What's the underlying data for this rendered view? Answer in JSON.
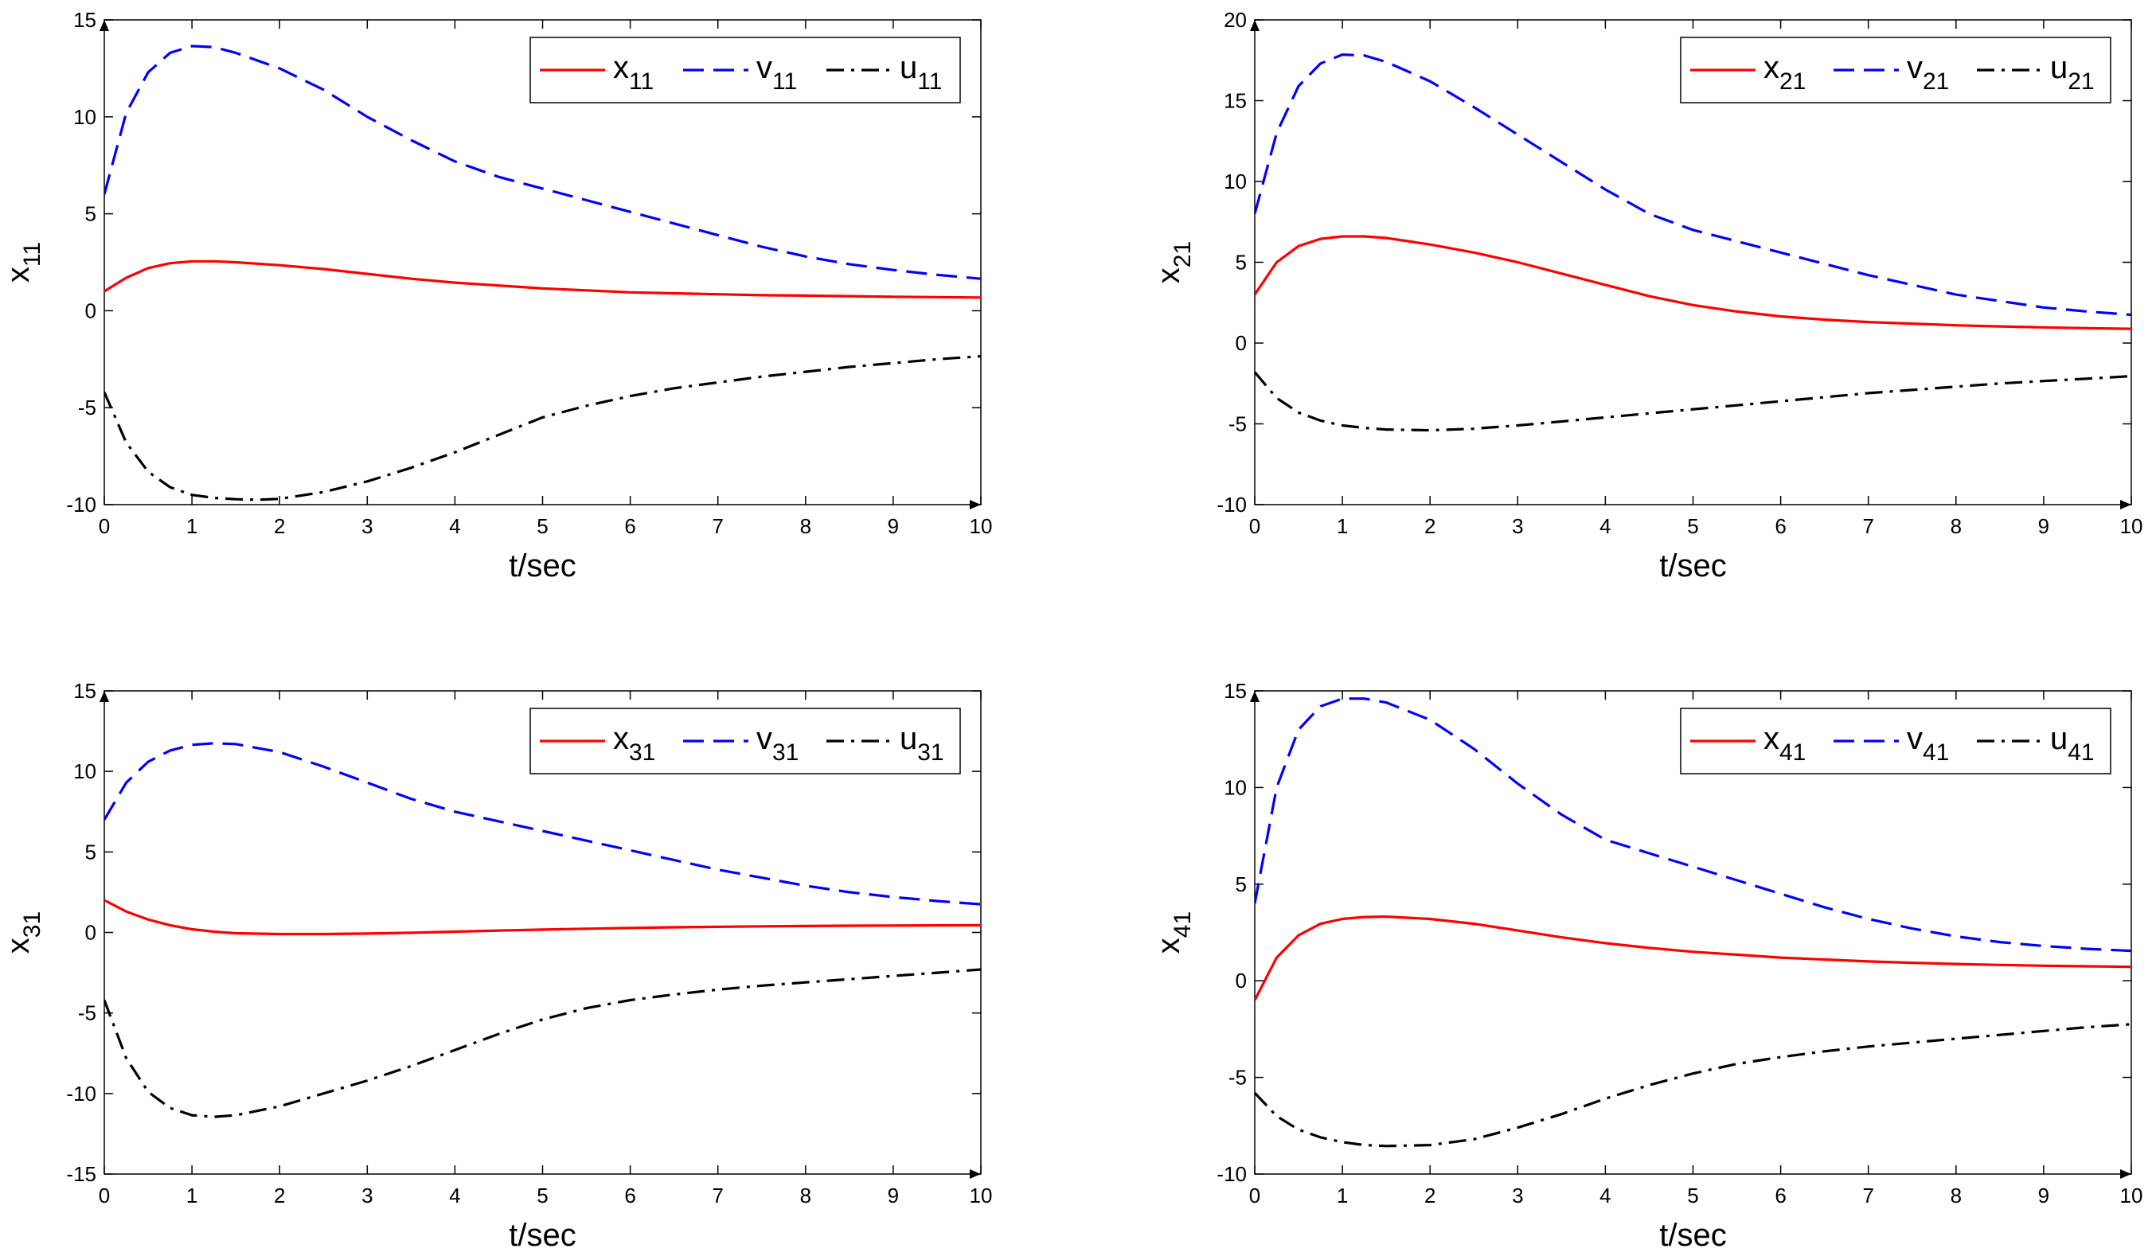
{
  "chart_data": [
    {
      "type": "line",
      "xlabel": "t/sec",
      "ylabel": {
        "base": "x",
        "sub": "11"
      },
      "xlim": [
        0,
        10
      ],
      "ylim": [
        -10,
        15
      ],
      "xticks": [
        0,
        1,
        2,
        3,
        4,
        5,
        6,
        7,
        8,
        9,
        10
      ],
      "yticks": [
        -10,
        -5,
        0,
        5,
        10,
        15
      ],
      "legend_position": "top-right",
      "series": [
        {
          "name": "x11",
          "base": "x",
          "sub": "11",
          "color": "#ff0000",
          "style": "solid",
          "x": [
            0,
            0.25,
            0.5,
            0.75,
            1,
            1.25,
            1.5,
            2,
            2.5,
            3,
            3.5,
            4,
            4.5,
            5,
            5.5,
            6,
            6.5,
            7,
            7.5,
            8,
            8.5,
            9,
            9.5,
            10
          ],
          "y": [
            1.0,
            1.7,
            2.2,
            2.45,
            2.55,
            2.55,
            2.5,
            2.35,
            2.15,
            1.9,
            1.65,
            1.45,
            1.3,
            1.15,
            1.05,
            0.95,
            0.9,
            0.85,
            0.8,
            0.78,
            0.75,
            0.72,
            0.7,
            0.68
          ]
        },
        {
          "name": "v11",
          "base": "v",
          "sub": "11",
          "color": "#0000ff",
          "style": "dashed",
          "x": [
            0,
            0.25,
            0.5,
            0.75,
            1,
            1.25,
            1.5,
            2,
            2.5,
            3,
            3.5,
            4,
            4.5,
            5,
            5.5,
            6,
            6.5,
            7,
            7.5,
            8,
            8.5,
            9,
            9.5,
            10
          ],
          "y": [
            6.0,
            10.2,
            12.3,
            13.3,
            13.65,
            13.6,
            13.3,
            12.5,
            11.4,
            10.0,
            8.8,
            7.7,
            6.9,
            6.3,
            5.7,
            5.1,
            4.5,
            3.9,
            3.3,
            2.8,
            2.4,
            2.1,
            1.85,
            1.65
          ]
        },
        {
          "name": "u11",
          "base": "u",
          "sub": "11",
          "color": "#000000",
          "style": "dashdot",
          "x": [
            0,
            0.25,
            0.5,
            0.75,
            1,
            1.25,
            1.5,
            1.75,
            2,
            2.5,
            3,
            3.5,
            4,
            4.5,
            5,
            5.5,
            6,
            6.5,
            7,
            7.5,
            8,
            8.5,
            9,
            9.5,
            10
          ],
          "y": [
            -4.2,
            -6.8,
            -8.3,
            -9.1,
            -9.5,
            -9.65,
            -9.72,
            -9.75,
            -9.7,
            -9.35,
            -8.8,
            -8.1,
            -7.3,
            -6.4,
            -5.5,
            -4.9,
            -4.4,
            -4.0,
            -3.7,
            -3.4,
            -3.15,
            -2.9,
            -2.7,
            -2.5,
            -2.35
          ]
        }
      ]
    },
    {
      "type": "line",
      "xlabel": "t/sec",
      "ylabel": {
        "base": "x",
        "sub": "21"
      },
      "xlim": [
        0,
        10
      ],
      "ylim": [
        -10,
        20
      ],
      "xticks": [
        0,
        1,
        2,
        3,
        4,
        5,
        6,
        7,
        8,
        9,
        10
      ],
      "yticks": [
        -10,
        -5,
        0,
        5,
        10,
        15,
        20
      ],
      "legend_position": "top-right",
      "series": [
        {
          "name": "x21",
          "base": "x",
          "sub": "21",
          "color": "#ff0000",
          "style": "solid",
          "x": [
            0,
            0.25,
            0.5,
            0.75,
            1,
            1.25,
            1.5,
            2,
            2.5,
            3,
            3.5,
            4,
            4.5,
            5,
            5.5,
            6,
            6.5,
            7,
            7.5,
            8,
            8.5,
            9,
            9.5,
            10
          ],
          "y": [
            3.0,
            5.0,
            6.0,
            6.45,
            6.6,
            6.6,
            6.5,
            6.1,
            5.6,
            5.0,
            4.3,
            3.6,
            2.9,
            2.35,
            1.95,
            1.65,
            1.45,
            1.3,
            1.2,
            1.1,
            1.03,
            0.97,
            0.92,
            0.88
          ]
        },
        {
          "name": "v21",
          "base": "v",
          "sub": "21",
          "color": "#0000ff",
          "style": "dashed",
          "x": [
            0,
            0.25,
            0.5,
            0.75,
            1,
            1.25,
            1.5,
            2,
            2.5,
            3,
            3.5,
            4,
            4.5,
            5,
            5.5,
            6,
            6.5,
            7,
            7.5,
            8,
            8.5,
            9,
            9.5,
            10
          ],
          "y": [
            8.0,
            13.0,
            15.9,
            17.3,
            17.85,
            17.8,
            17.4,
            16.2,
            14.6,
            12.9,
            11.2,
            9.5,
            8.0,
            7.0,
            6.3,
            5.6,
            4.9,
            4.2,
            3.6,
            3.0,
            2.6,
            2.2,
            1.95,
            1.75
          ]
        },
        {
          "name": "u21",
          "base": "u",
          "sub": "21",
          "color": "#000000",
          "style": "dashdot",
          "x": [
            0,
            0.25,
            0.5,
            0.75,
            1,
            1.25,
            1.5,
            2,
            2.5,
            3,
            3.5,
            4,
            4.5,
            5,
            5.5,
            6,
            6.5,
            7,
            7.5,
            8,
            8.5,
            9,
            9.5,
            10
          ],
          "y": [
            -1.8,
            -3.4,
            -4.3,
            -4.8,
            -5.1,
            -5.25,
            -5.35,
            -5.4,
            -5.3,
            -5.1,
            -4.85,
            -4.6,
            -4.35,
            -4.1,
            -3.85,
            -3.6,
            -3.35,
            -3.1,
            -2.9,
            -2.7,
            -2.5,
            -2.35,
            -2.2,
            -2.05
          ]
        }
      ]
    },
    {
      "type": "line",
      "xlabel": "t/sec",
      "ylabel": {
        "base": "x",
        "sub": "31"
      },
      "xlim": [
        0,
        10
      ],
      "ylim": [
        -15,
        15
      ],
      "xticks": [
        0,
        1,
        2,
        3,
        4,
        5,
        6,
        7,
        8,
        9,
        10
      ],
      "yticks": [
        -15,
        -10,
        -5,
        0,
        5,
        10,
        15
      ],
      "legend_position": "top-right",
      "series": [
        {
          "name": "x31",
          "base": "x",
          "sub": "31",
          "color": "#ff0000",
          "style": "solid",
          "x": [
            0,
            0.25,
            0.5,
            0.75,
            1,
            1.25,
            1.5,
            2,
            2.5,
            3,
            3.5,
            4,
            4.5,
            5,
            5.5,
            6,
            6.5,
            7,
            7.5,
            8,
            8.5,
            9,
            9.5,
            10
          ],
          "y": [
            2.0,
            1.3,
            0.8,
            0.45,
            0.2,
            0.05,
            -0.05,
            -0.1,
            -0.1,
            -0.07,
            -0.02,
            0.05,
            0.12,
            0.18,
            0.23,
            0.28,
            0.32,
            0.35,
            0.38,
            0.4,
            0.42,
            0.43,
            0.44,
            0.45
          ]
        },
        {
          "name": "v31",
          "base": "v",
          "sub": "31",
          "color": "#0000ff",
          "style": "dashed",
          "x": [
            0,
            0.25,
            0.5,
            0.75,
            1,
            1.25,
            1.5,
            2,
            2.5,
            3,
            3.5,
            4,
            4.5,
            5,
            5.5,
            6,
            6.5,
            7,
            7.5,
            8,
            8.5,
            9,
            9.5,
            10
          ],
          "y": [
            7.0,
            9.3,
            10.6,
            11.3,
            11.65,
            11.75,
            11.7,
            11.2,
            10.3,
            9.3,
            8.3,
            7.5,
            6.9,
            6.3,
            5.7,
            5.1,
            4.5,
            3.9,
            3.4,
            2.9,
            2.5,
            2.2,
            1.95,
            1.75
          ]
        },
        {
          "name": "u31",
          "base": "u",
          "sub": "31",
          "color": "#000000",
          "style": "dashdot",
          "x": [
            0,
            0.25,
            0.5,
            0.75,
            1,
            1.25,
            1.5,
            2,
            2.5,
            3,
            3.5,
            4,
            4.5,
            5,
            5.5,
            6,
            6.5,
            7,
            7.5,
            8,
            8.5,
            9,
            9.5,
            10
          ],
          "y": [
            -4.2,
            -7.8,
            -9.9,
            -10.9,
            -11.35,
            -11.45,
            -11.35,
            -10.8,
            -10.0,
            -9.2,
            -8.3,
            -7.3,
            -6.3,
            -5.4,
            -4.7,
            -4.2,
            -3.85,
            -3.55,
            -3.3,
            -3.1,
            -2.9,
            -2.7,
            -2.5,
            -2.3
          ]
        }
      ]
    },
    {
      "type": "line",
      "xlabel": "t/sec",
      "ylabel": {
        "base": "x",
        "sub": "41"
      },
      "xlim": [
        0,
        10
      ],
      "ylim": [
        -10,
        15
      ],
      "xticks": [
        0,
        1,
        2,
        3,
        4,
        5,
        6,
        7,
        8,
        9,
        10
      ],
      "yticks": [
        -10,
        -5,
        0,
        5,
        10,
        15
      ],
      "legend_position": "top-right",
      "series": [
        {
          "name": "x41",
          "base": "x",
          "sub": "41",
          "color": "#ff0000",
          "style": "solid",
          "x": [
            0,
            0.25,
            0.5,
            0.75,
            1,
            1.25,
            1.5,
            2,
            2.5,
            3,
            3.5,
            4,
            4.5,
            5,
            5.5,
            6,
            6.5,
            7,
            7.5,
            8,
            8.5,
            9,
            9.5,
            10
          ],
          "y": [
            -1.0,
            1.2,
            2.35,
            2.95,
            3.2,
            3.3,
            3.32,
            3.2,
            2.95,
            2.6,
            2.25,
            1.95,
            1.7,
            1.5,
            1.35,
            1.2,
            1.1,
            1.0,
            0.93,
            0.87,
            0.82,
            0.78,
            0.75,
            0.72
          ]
        },
        {
          "name": "v41",
          "base": "v",
          "sub": "41",
          "color": "#0000ff",
          "style": "dashed",
          "x": [
            0,
            0.25,
            0.5,
            0.75,
            1,
            1.25,
            1.5,
            2,
            2.5,
            3,
            3.5,
            4,
            4.5,
            5,
            5.5,
            6,
            6.5,
            7,
            7.5,
            8,
            8.5,
            9,
            9.5,
            10
          ],
          "y": [
            4.0,
            10.0,
            13.0,
            14.2,
            14.6,
            14.6,
            14.4,
            13.5,
            12.0,
            10.2,
            8.6,
            7.3,
            6.6,
            5.9,
            5.2,
            4.5,
            3.8,
            3.2,
            2.7,
            2.3,
            2.0,
            1.8,
            1.65,
            1.55
          ]
        },
        {
          "name": "u41",
          "base": "u",
          "sub": "41",
          "color": "#000000",
          "style": "dashdot",
          "x": [
            0,
            0.25,
            0.5,
            0.75,
            1,
            1.25,
            1.5,
            2,
            2.5,
            3,
            3.5,
            4,
            4.5,
            5,
            5.5,
            6,
            6.5,
            7,
            7.5,
            8,
            8.5,
            9,
            9.5,
            10
          ],
          "y": [
            -5.8,
            -7.0,
            -7.7,
            -8.1,
            -8.35,
            -8.5,
            -8.55,
            -8.5,
            -8.2,
            -7.6,
            -6.9,
            -6.1,
            -5.4,
            -4.8,
            -4.3,
            -3.95,
            -3.65,
            -3.4,
            -3.2,
            -3.0,
            -2.8,
            -2.6,
            -2.4,
            -2.25
          ]
        }
      ]
    }
  ]
}
